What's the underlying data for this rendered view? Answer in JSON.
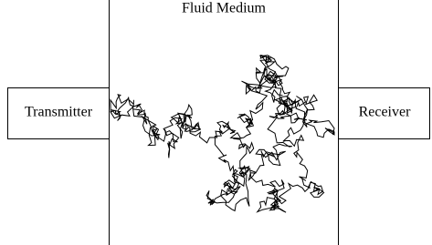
{
  "title": "Fluid Medium",
  "nodes": [
    {
      "label": "Transmitter"
    },
    {
      "label": "Receiver"
    }
  ]
}
